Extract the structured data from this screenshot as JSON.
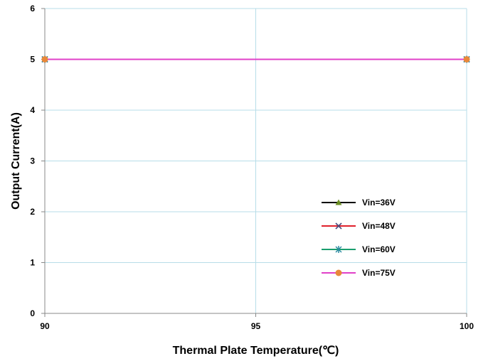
{
  "chart_data": {
    "type": "line",
    "title": "",
    "xlabel": "Thermal Plate Temperature(℃)",
    "ylabel": "Output Current(A)",
    "xlim": [
      90,
      100
    ],
    "ylim": [
      0,
      6
    ],
    "xticks": [
      "90",
      "95",
      "100"
    ],
    "yticks": [
      "0",
      "1",
      "2",
      "3",
      "4",
      "5",
      "6"
    ],
    "grid": true,
    "legend_position": "lower-right",
    "x": [
      90,
      100
    ],
    "series": [
      {
        "name": "Vin=36V",
        "values": [
          5,
          5
        ],
        "color": "#000000",
        "marker": "triangle",
        "marker_color": "#6b8e23"
      },
      {
        "name": "Vin=48V",
        "values": [
          5,
          5
        ],
        "color": "#e0202b",
        "marker": "x",
        "marker_color": "#4a4a7a"
      },
      {
        "name": "Vin=60V",
        "values": [
          5,
          5
        ],
        "color": "#1a9e6e",
        "marker": "star",
        "marker_color": "#2a8aa0"
      },
      {
        "name": "Vin=75V",
        "values": [
          5,
          5
        ],
        "color": "#e040c8",
        "marker": "circle",
        "marker_color": "#e8883a"
      }
    ]
  }
}
